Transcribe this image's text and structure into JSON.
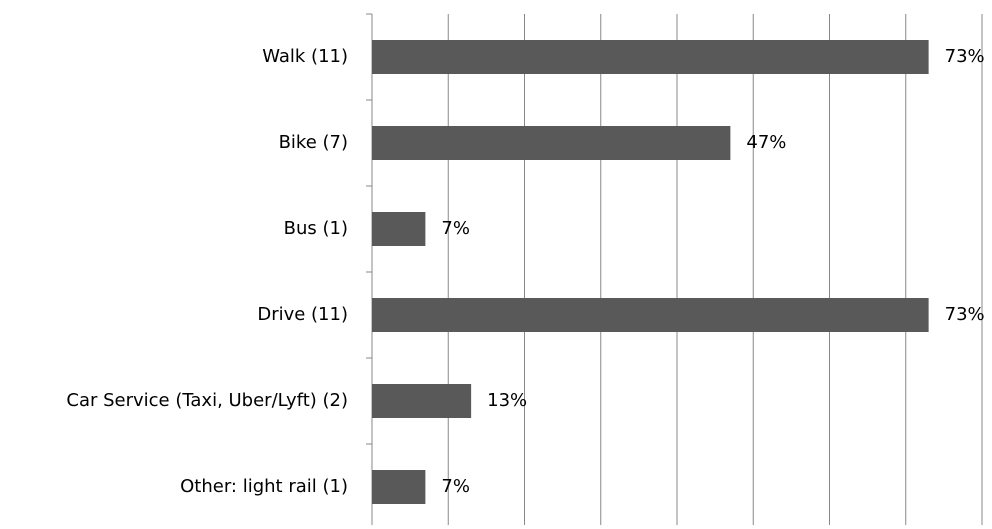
{
  "chart_data": {
    "type": "barh",
    "categories": [
      "Walk (11)",
      "Bike (7)",
      "Bus (1)",
      "Drive (11)",
      "Car Service (Taxi, Uber/Lyft) (2)",
      "Other: light rail (1)"
    ],
    "values": [
      73,
      47,
      7,
      73,
      13,
      7
    ],
    "value_labels": [
      "73%",
      "47%",
      "7%",
      "73%",
      "13%",
      "7%"
    ],
    "color": "#595959",
    "xlim": [
      0,
      80
    ],
    "xticks": [
      0,
      10,
      20,
      30,
      40,
      50,
      60,
      70,
      80
    ],
    "grid": true
  }
}
